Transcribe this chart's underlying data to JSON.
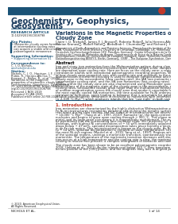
{
  "bg_color": "#ffffff",
  "thick_line_color": "#1a5276",
  "title_color": "#1a3a5c",
  "text_color": "#222222",
  "intro_title_color": "#c0392b",
  "thin_line_color": "#aaaaaa"
}
